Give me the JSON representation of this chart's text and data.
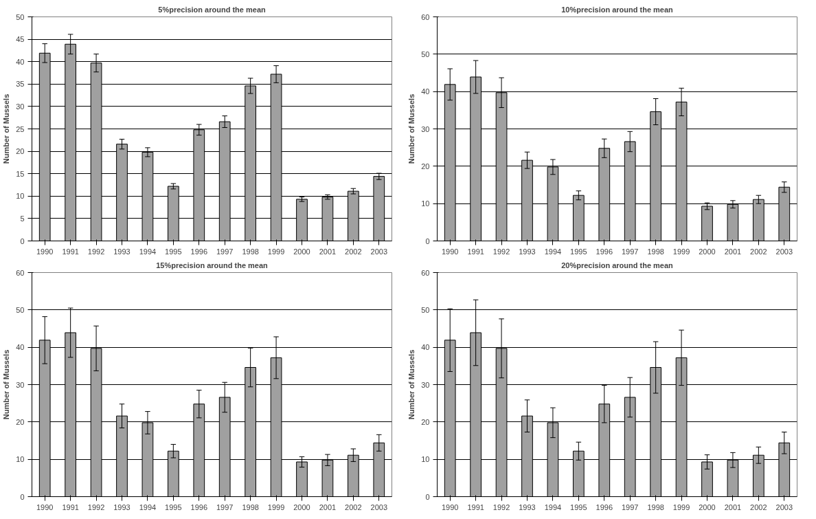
{
  "chart_data": [
    {
      "type": "bar",
      "title": "5%precision around the mean",
      "ylabel": "Number of Mussels",
      "categories": [
        "1990",
        "1991",
        "1992",
        "1993",
        "1994",
        "1995",
        "1996",
        "1997",
        "1998",
        "1999",
        "2000",
        "2001",
        "2002",
        "2003"
      ],
      "series": [
        {
          "color": "#a0a0a0",
          "values": [
            41.9,
            43.9,
            39.7,
            21.6,
            19.8,
            12.2,
            24.8,
            26.6,
            34.6,
            37.2,
            9.3,
            9.8,
            11.1,
            14.4
          ],
          "errors": [
            2.1,
            2.2,
            2.0,
            1.1,
            1.0,
            0.6,
            1.2,
            1.3,
            1.7,
            1.9,
            0.5,
            0.5,
            0.6,
            0.7
          ]
        }
      ],
      "ylim": [
        0,
        50
      ],
      "yticks": [
        0,
        5,
        10,
        15,
        20,
        25,
        30,
        35,
        40,
        45,
        50
      ],
      "grid": "y"
    },
    {
      "type": "bar",
      "title": "10%precision around the mean",
      "ylabel": "Number of Mussels",
      "categories": [
        "1990",
        "1991",
        "1992",
        "1993",
        "1994",
        "1995",
        "1996",
        "1997",
        "1998",
        "1999",
        "2000",
        "2001",
        "2002",
        "2003"
      ],
      "series": [
        {
          "color": "#a0a0a0",
          "values": [
            41.9,
            43.9,
            39.7,
            21.6,
            19.8,
            12.2,
            24.8,
            26.6,
            34.6,
            37.2,
            9.3,
            9.8,
            11.1,
            14.4
          ],
          "errors": [
            4.2,
            4.4,
            4.0,
            2.2,
            2.0,
            1.2,
            2.5,
            2.7,
            3.5,
            3.7,
            0.9,
            1.0,
            1.1,
            1.4
          ]
        }
      ],
      "ylim": [
        0,
        60
      ],
      "yticks": [
        0,
        10,
        20,
        30,
        40,
        50,
        60
      ],
      "grid": "y"
    },
    {
      "type": "bar",
      "title": "15%precision around the mean",
      "ylabel": "Number of Mussels",
      "categories": [
        "1990",
        "1991",
        "1992",
        "1993",
        "1994",
        "1995",
        "1996",
        "1997",
        "1998",
        "1999",
        "2000",
        "2001",
        "2002",
        "2003"
      ],
      "series": [
        {
          "color": "#a0a0a0",
          "values": [
            41.9,
            43.9,
            39.7,
            21.6,
            19.8,
            12.2,
            24.8,
            26.6,
            34.6,
            37.2,
            9.3,
            9.8,
            11.1,
            14.4
          ],
          "errors": [
            6.3,
            6.6,
            6.0,
            3.2,
            3.0,
            1.8,
            3.7,
            4.0,
            5.2,
            5.6,
            1.4,
            1.5,
            1.7,
            2.2
          ]
        }
      ],
      "ylim": [
        0,
        60
      ],
      "yticks": [
        0,
        10,
        20,
        30,
        40,
        50,
        60
      ],
      "grid": "y"
    },
    {
      "type": "bar",
      "title": "20%precision around the mean",
      "ylabel": "Number of Mussels",
      "categories": [
        "1990",
        "1991",
        "1992",
        "1993",
        "1994",
        "1995",
        "1996",
        "1997",
        "1998",
        "1999",
        "2000",
        "2001",
        "2002",
        "2003"
      ],
      "series": [
        {
          "color": "#a0a0a0",
          "values": [
            41.9,
            43.9,
            39.7,
            21.6,
            19.8,
            12.2,
            24.8,
            26.6,
            34.6,
            37.2,
            9.3,
            9.8,
            11.1,
            14.4
          ],
          "errors": [
            8.4,
            8.8,
            7.9,
            4.3,
            4.0,
            2.4,
            5.0,
            5.3,
            6.9,
            7.4,
            1.9,
            2.0,
            2.2,
            2.9
          ]
        }
      ],
      "ylim": [
        0,
        60
      ],
      "yticks": [
        0,
        10,
        20,
        30,
        40,
        50,
        60
      ],
      "grid": "y"
    }
  ]
}
